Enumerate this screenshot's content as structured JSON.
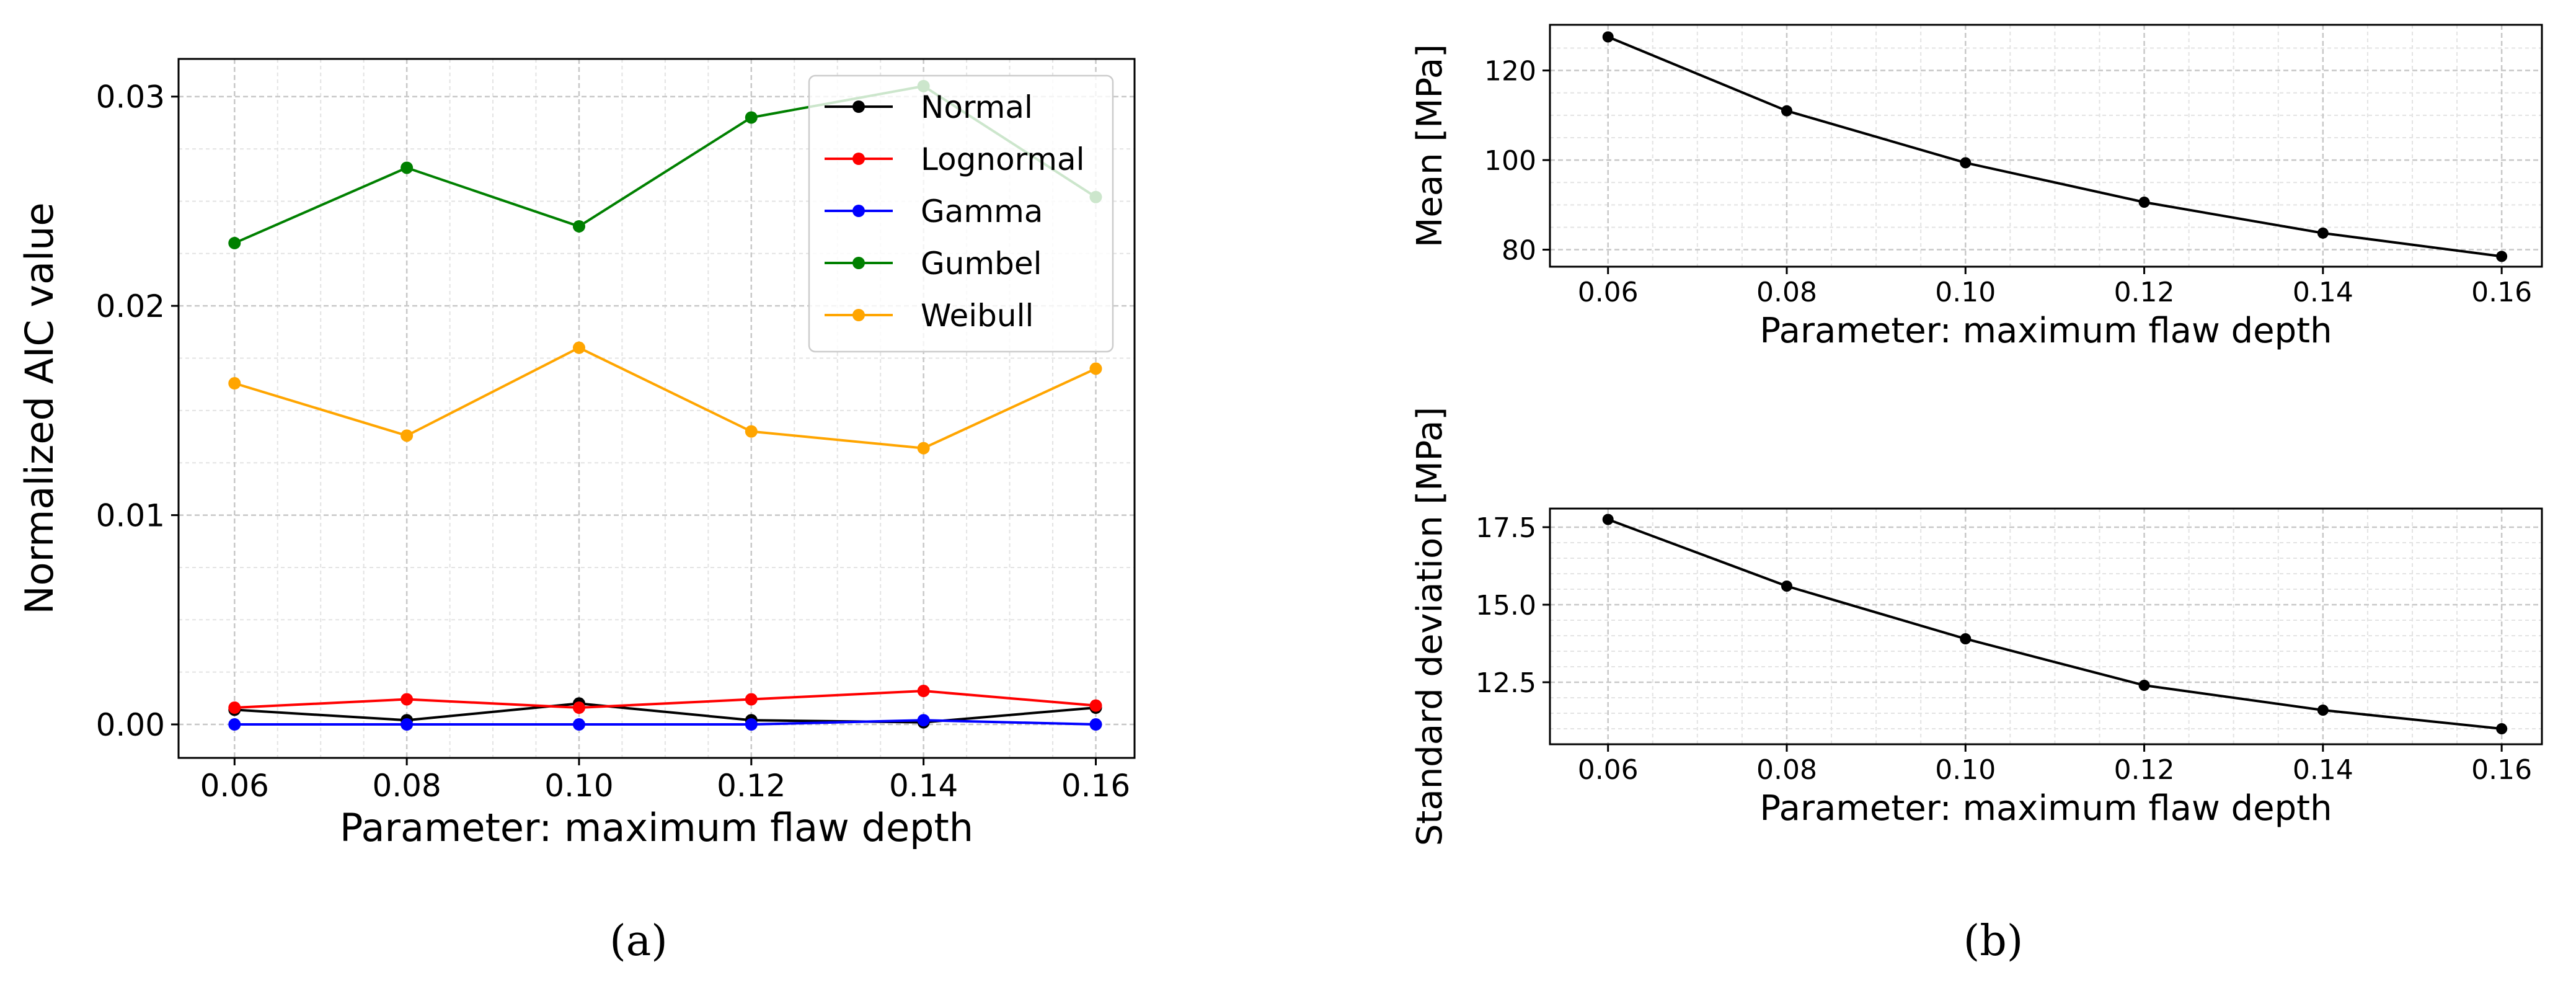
{
  "captions": {
    "a": "(a)",
    "b": "(b)"
  },
  "chart_data": [
    {
      "id": "a",
      "type": "line",
      "title": "",
      "xlabel": "Parameter: maximum flaw depth",
      "ylabel": "Normalized AIC value",
      "x": [
        0.06,
        0.08,
        0.1,
        0.12,
        0.14,
        0.16
      ],
      "xticks": [
        "0.06",
        "0.08",
        "0.10",
        "0.12",
        "0.14",
        "0.16"
      ],
      "xlim": [
        0.0535,
        0.1645
      ],
      "ylim": [
        -0.0016,
        0.0318
      ],
      "yticks": [
        {
          "v": 0.0,
          "label": "0.00"
        },
        {
          "v": 0.01,
          "label": "0.01"
        },
        {
          "v": 0.02,
          "label": "0.02"
        },
        {
          "v": 0.03,
          "label": "0.03"
        }
      ],
      "ymajor": [
        0.0,
        0.01,
        0.02,
        0.03
      ],
      "yminor": [
        0.0025,
        0.005,
        0.0075,
        0.0125,
        0.015,
        0.0175,
        0.0225,
        0.025,
        0.0275
      ],
      "xminor": [
        0.065,
        0.07,
        0.075,
        0.085,
        0.09,
        0.095,
        0.105,
        0.11,
        0.115,
        0.125,
        0.13,
        0.135,
        0.145,
        0.15,
        0.155
      ],
      "grid": true,
      "legend": "top-right",
      "series": [
        {
          "name": "Normal",
          "color": "#000000",
          "values": [
            0.0007,
            0.0002,
            0.001,
            0.0002,
            0.0001,
            0.0008
          ]
        },
        {
          "name": "Lognormal",
          "color": "#ff0000",
          "values": [
            0.0008,
            0.0012,
            0.0008,
            0.0012,
            0.0016,
            0.0009
          ]
        },
        {
          "name": "Gamma",
          "color": "#0000ff",
          "values": [
            0.0,
            0.0,
            0.0,
            0.0,
            0.0002,
            0.0
          ]
        },
        {
          "name": "Gumbel",
          "color": "#008000",
          "values": [
            0.023,
            0.0266,
            0.0238,
            0.029,
            0.0305,
            0.0252
          ]
        },
        {
          "name": "Weibull",
          "color": "#ffa500",
          "values": [
            0.0163,
            0.0138,
            0.018,
            0.014,
            0.0132,
            0.017
          ]
        }
      ]
    },
    {
      "id": "b-top",
      "type": "line",
      "title": "",
      "xlabel": "Parameter: maximum flaw depth",
      "ylabel": "Mean [MPa]",
      "x": [
        0.06,
        0.08,
        0.1,
        0.12,
        0.14,
        0.16
      ],
      "xticks": [
        "0.06",
        "0.08",
        "0.10",
        "0.12",
        "0.14",
        "0.16"
      ],
      "xlim": [
        0.0535,
        0.1645
      ],
      "ylim": [
        76.2,
        130.2
      ],
      "yticks": [
        {
          "v": 80,
          "label": "80"
        },
        {
          "v": 100,
          "label": "100"
        },
        {
          "v": 120,
          "label": "120"
        }
      ],
      "ymajor": [
        80,
        100,
        120
      ],
      "yminor": [
        85,
        90,
        95,
        105,
        110,
        115,
        125
      ],
      "xminor": [
        0.065,
        0.07,
        0.075,
        0.085,
        0.09,
        0.095,
        0.105,
        0.11,
        0.115,
        0.125,
        0.13,
        0.135,
        0.145,
        0.15,
        0.155
      ],
      "grid": true,
      "series": [
        {
          "name": "",
          "color": "#000000",
          "values": [
            127.5,
            111.0,
            99.4,
            90.6,
            83.7,
            78.5
          ]
        }
      ]
    },
    {
      "id": "b-bottom",
      "type": "line",
      "title": "",
      "xlabel": "Parameter: maximum flaw depth",
      "ylabel": "Standard deviation [MPa]",
      "x": [
        0.06,
        0.08,
        0.1,
        0.12,
        0.14,
        0.16
      ],
      "xticks": [
        "0.06",
        "0.08",
        "0.10",
        "0.12",
        "0.14",
        "0.16"
      ],
      "xlim": [
        0.0535,
        0.1645
      ],
      "ylim": [
        10.5,
        18.1
      ],
      "yticks": [
        {
          "v": 12.5,
          "label": "12.5"
        },
        {
          "v": 15.0,
          "label": "15.0"
        },
        {
          "v": 17.5,
          "label": "17.5"
        }
      ],
      "ymajor": [
        12.5,
        15.0,
        17.5
      ],
      "yminor": [
        11.0,
        11.5,
        12.0,
        13.0,
        13.5,
        14.0,
        14.5,
        15.5,
        16.0,
        16.5,
        17.0
      ],
      "xminor": [
        0.065,
        0.07,
        0.075,
        0.085,
        0.09,
        0.095,
        0.105,
        0.11,
        0.115,
        0.125,
        0.13,
        0.135,
        0.145,
        0.15,
        0.155
      ],
      "grid": true,
      "series": [
        {
          "name": "",
          "color": "#000000",
          "values": [
            17.75,
            15.6,
            13.9,
            12.4,
            11.6,
            11.0
          ]
        }
      ]
    }
  ]
}
